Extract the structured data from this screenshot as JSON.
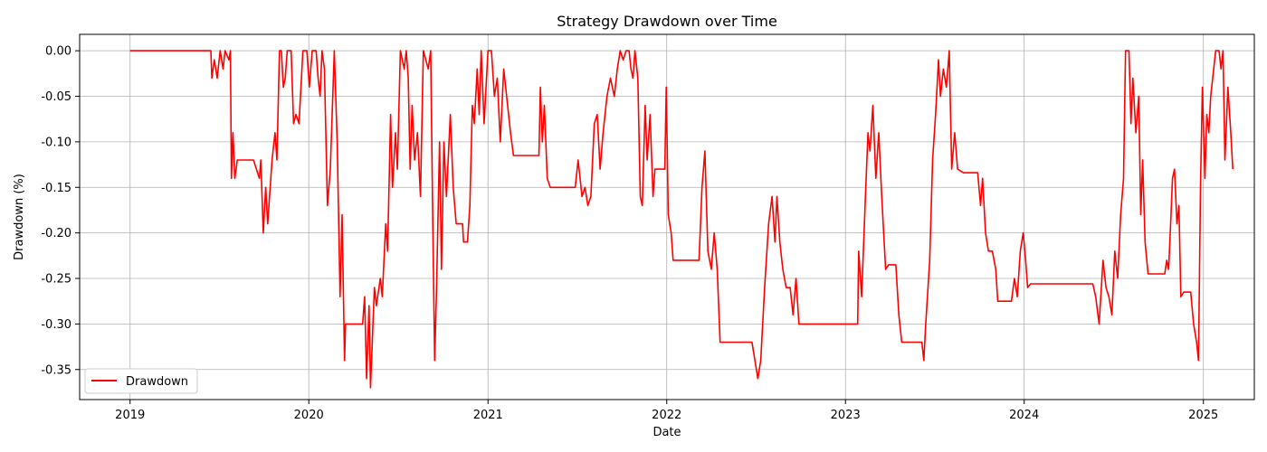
{
  "chart_data": {
    "type": "line",
    "title": "Strategy Drawdown over Time",
    "xlabel": "Date",
    "ylabel": "Drawdown (%)",
    "xlim": [
      "2018-09-20",
      "2025-04-15"
    ],
    "ylim": [
      -0.383,
      0.018
    ],
    "grid": true,
    "legend_position": "lower-left",
    "x_ticks": [
      "2019",
      "2020",
      "2021",
      "2022",
      "2023",
      "2024",
      "2025"
    ],
    "y_ticks": [
      "0.00",
      "-0.05",
      "-0.10",
      "-0.15",
      "-0.20",
      "-0.25",
      "-0.30",
      "-0.35"
    ],
    "x_tick_values": [
      "2019-01-01",
      "2020-01-01",
      "2021-01-01",
      "2022-01-01",
      "2023-01-01",
      "2024-01-01",
      "2025-01-01"
    ],
    "y_tick_values": [
      0,
      -0.05,
      -0.1,
      -0.15,
      -0.2,
      -0.25,
      -0.3,
      -0.35
    ],
    "series": [
      {
        "name": "Drawdown",
        "color": "#ff0000",
        "points": [
          [
            "2019-01-01",
            0
          ],
          [
            "2019-06-15",
            0
          ],
          [
            "2019-06-17",
            -0.03
          ],
          [
            "2019-06-22",
            -0.01
          ],
          [
            "2019-06-28",
            -0.03
          ],
          [
            "2019-07-04",
            0
          ],
          [
            "2019-07-10",
            -0.02
          ],
          [
            "2019-07-14",
            0
          ],
          [
            "2019-07-22",
            -0.01
          ],
          [
            "2019-07-25",
            0
          ],
          [
            "2019-07-27",
            -0.14
          ],
          [
            "2019-07-30",
            -0.09
          ],
          [
            "2019-08-03",
            -0.14
          ],
          [
            "2019-08-08",
            -0.12
          ],
          [
            "2019-08-20",
            -0.12
          ],
          [
            "2019-09-10",
            -0.12
          ],
          [
            "2019-09-22",
            -0.14
          ],
          [
            "2019-09-25",
            -0.12
          ],
          [
            "2019-09-30",
            -0.2
          ],
          [
            "2019-10-05",
            -0.15
          ],
          [
            "2019-10-09",
            -0.19
          ],
          [
            "2019-10-18",
            -0.12
          ],
          [
            "2019-10-24",
            -0.09
          ],
          [
            "2019-10-28",
            -0.12
          ],
          [
            "2019-11-02",
            0
          ],
          [
            "2019-11-06",
            0
          ],
          [
            "2019-11-10",
            -0.04
          ],
          [
            "2019-11-14",
            -0.03
          ],
          [
            "2019-11-18",
            0
          ],
          [
            "2019-11-26",
            0
          ],
          [
            "2019-12-01",
            -0.08
          ],
          [
            "2019-12-06",
            -0.07
          ],
          [
            "2019-12-12",
            -0.08
          ],
          [
            "2019-12-20",
            0
          ],
          [
            "2019-12-28",
            0
          ],
          [
            "2020-01-02",
            -0.04
          ],
          [
            "2020-01-08",
            0
          ],
          [
            "2020-01-16",
            0
          ],
          [
            "2020-01-20",
            -0.03
          ],
          [
            "2020-01-24",
            -0.05
          ],
          [
            "2020-01-28",
            0
          ],
          [
            "2020-02-02",
            -0.02
          ],
          [
            "2020-02-08",
            -0.17
          ],
          [
            "2020-02-14",
            -0.13
          ],
          [
            "2020-02-22",
            0
          ],
          [
            "2020-02-28",
            -0.1
          ],
          [
            "2020-03-05",
            -0.27
          ],
          [
            "2020-03-09",
            -0.18
          ],
          [
            "2020-03-14",
            -0.34
          ],
          [
            "2020-03-16",
            -0.3
          ],
          [
            "2020-03-30",
            -0.3
          ],
          [
            "2020-04-20",
            -0.3
          ],
          [
            "2020-04-24",
            -0.27
          ],
          [
            "2020-04-28",
            -0.36
          ],
          [
            "2020-05-03",
            -0.28
          ],
          [
            "2020-05-06",
            -0.37
          ],
          [
            "2020-05-14",
            -0.26
          ],
          [
            "2020-05-18",
            -0.28
          ],
          [
            "2020-05-26",
            -0.25
          ],
          [
            "2020-05-30",
            -0.27
          ],
          [
            "2020-06-06",
            -0.19
          ],
          [
            "2020-06-10",
            -0.22
          ],
          [
            "2020-06-16",
            -0.07
          ],
          [
            "2020-06-20",
            -0.15
          ],
          [
            "2020-06-26",
            -0.09
          ],
          [
            "2020-06-30",
            -0.13
          ],
          [
            "2020-07-06",
            0
          ],
          [
            "2020-07-14",
            -0.02
          ],
          [
            "2020-07-18",
            0
          ],
          [
            "2020-07-22",
            -0.03
          ],
          [
            "2020-07-26",
            -0.13
          ],
          [
            "2020-07-30",
            -0.06
          ],
          [
            "2020-08-04",
            -0.12
          ],
          [
            "2020-08-10",
            -0.09
          ],
          [
            "2020-08-16",
            -0.16
          ],
          [
            "2020-08-22",
            0
          ],
          [
            "2020-09-01",
            -0.02
          ],
          [
            "2020-09-06",
            0
          ],
          [
            "2020-09-10",
            -0.18
          ],
          [
            "2020-09-14",
            -0.34
          ],
          [
            "2020-09-18",
            -0.26
          ],
          [
            "2020-09-24",
            -0.1
          ],
          [
            "2020-09-28",
            -0.24
          ],
          [
            "2020-10-03",
            -0.1
          ],
          [
            "2020-10-08",
            -0.16
          ],
          [
            "2020-10-16",
            -0.07
          ],
          [
            "2020-10-22",
            -0.15
          ],
          [
            "2020-10-28",
            -0.19
          ],
          [
            "2020-11-10",
            -0.19
          ],
          [
            "2020-11-12",
            -0.21
          ],
          [
            "2020-11-20",
            -0.21
          ],
          [
            "2020-11-25",
            -0.17
          ],
          [
            "2020-11-30",
            -0.06
          ],
          [
            "2020-12-04",
            -0.08
          ],
          [
            "2020-12-10",
            -0.02
          ],
          [
            "2020-12-14",
            -0.07
          ],
          [
            "2020-12-18",
            0
          ],
          [
            "2020-12-24",
            -0.08
          ],
          [
            "2021-01-01",
            0
          ],
          [
            "2021-01-08",
            0
          ],
          [
            "2021-01-14",
            -0.05
          ],
          [
            "2021-01-20",
            -0.03
          ],
          [
            "2021-01-26",
            -0.1
          ],
          [
            "2021-02-02",
            -0.02
          ],
          [
            "2021-02-10",
            -0.06
          ],
          [
            "2021-02-16",
            -0.09
          ],
          [
            "2021-02-22",
            -0.115
          ],
          [
            "2021-04-15",
            -0.115
          ],
          [
            "2021-04-18",
            -0.04
          ],
          [
            "2021-04-22",
            -0.1
          ],
          [
            "2021-04-26",
            -0.06
          ],
          [
            "2021-05-02",
            -0.14
          ],
          [
            "2021-05-08",
            -0.15
          ],
          [
            "2021-06-01",
            -0.15
          ],
          [
            "2021-06-28",
            -0.15
          ],
          [
            "2021-07-04",
            -0.12
          ],
          [
            "2021-07-12",
            -0.16
          ],
          [
            "2021-07-18",
            -0.15
          ],
          [
            "2021-07-24",
            -0.17
          ],
          [
            "2021-07-30",
            -0.16
          ],
          [
            "2021-08-06",
            -0.08
          ],
          [
            "2021-08-12",
            -0.07
          ],
          [
            "2021-08-18",
            -0.13
          ],
          [
            "2021-08-24",
            -0.09
          ],
          [
            "2021-09-01",
            -0.05
          ],
          [
            "2021-09-08",
            -0.03
          ],
          [
            "2021-09-16",
            -0.05
          ],
          [
            "2021-09-22",
            -0.02
          ],
          [
            "2021-09-28",
            0
          ],
          [
            "2021-10-04",
            -0.01
          ],
          [
            "2021-10-10",
            0
          ],
          [
            "2021-10-16",
            0
          ],
          [
            "2021-10-20",
            -0.02
          ],
          [
            "2021-10-24",
            -0.03
          ],
          [
            "2021-10-28",
            0
          ],
          [
            "2021-11-03",
            -0.03
          ],
          [
            "2021-11-08",
            -0.16
          ],
          [
            "2021-11-12",
            -0.17
          ],
          [
            "2021-11-18",
            -0.06
          ],
          [
            "2021-11-22",
            -0.12
          ],
          [
            "2021-11-28",
            -0.07
          ],
          [
            "2021-12-04",
            -0.16
          ],
          [
            "2021-12-08",
            -0.13
          ],
          [
            "2021-12-28",
            -0.13
          ],
          [
            "2021-12-31",
            -0.04
          ],
          [
            "2022-01-04",
            -0.18
          ],
          [
            "2022-01-10",
            -0.2
          ],
          [
            "2022-01-14",
            -0.23
          ],
          [
            "2022-03-01",
            -0.23
          ],
          [
            "2022-03-08",
            -0.23
          ],
          [
            "2022-03-14",
            -0.15
          ],
          [
            "2022-03-20",
            -0.11
          ],
          [
            "2022-03-26",
            -0.22
          ],
          [
            "2022-04-02",
            -0.24
          ],
          [
            "2022-04-08",
            -0.2
          ],
          [
            "2022-04-14",
            -0.24
          ],
          [
            "2022-04-20",
            -0.32
          ],
          [
            "2022-05-20",
            -0.32
          ],
          [
            "2022-06-24",
            -0.32
          ],
          [
            "2022-07-06",
            -0.36
          ],
          [
            "2022-07-12",
            -0.34
          ],
          [
            "2022-07-20",
            -0.26
          ],
          [
            "2022-07-28",
            -0.19
          ],
          [
            "2022-08-04",
            -0.16
          ],
          [
            "2022-08-10",
            -0.21
          ],
          [
            "2022-08-14",
            -0.16
          ],
          [
            "2022-08-20",
            -0.21
          ],
          [
            "2022-08-26",
            -0.24
          ],
          [
            "2022-09-02",
            -0.26
          ],
          [
            "2022-09-10",
            -0.26
          ],
          [
            "2022-09-16",
            -0.29
          ],
          [
            "2022-09-22",
            -0.25
          ],
          [
            "2022-09-28",
            -0.3
          ],
          [
            "2022-12-31",
            -0.3
          ],
          [
            "2023-01-26",
            -0.3
          ],
          [
            "2023-01-28",
            -0.22
          ],
          [
            "2023-02-03",
            -0.27
          ],
          [
            "2023-02-10",
            -0.17
          ],
          [
            "2023-02-16",
            -0.09
          ],
          [
            "2023-02-20",
            -0.11
          ],
          [
            "2023-02-26",
            -0.06
          ],
          [
            "2023-03-04",
            -0.14
          ],
          [
            "2023-03-10",
            -0.09
          ],
          [
            "2023-03-16",
            -0.16
          ],
          [
            "2023-03-24",
            -0.24
          ],
          [
            "2023-03-30",
            -0.235
          ],
          [
            "2023-04-14",
            -0.235
          ],
          [
            "2023-04-20",
            -0.29
          ],
          [
            "2023-04-26",
            -0.32
          ],
          [
            "2023-05-22",
            -0.32
          ],
          [
            "2023-06-06",
            -0.32
          ],
          [
            "2023-06-10",
            -0.34
          ],
          [
            "2023-06-14",
            -0.3
          ],
          [
            "2023-06-22",
            -0.23
          ],
          [
            "2023-06-28",
            -0.12
          ],
          [
            "2023-07-04",
            -0.07
          ],
          [
            "2023-07-10",
            -0.01
          ],
          [
            "2023-07-14",
            -0.05
          ],
          [
            "2023-07-20",
            -0.02
          ],
          [
            "2023-07-26",
            -0.04
          ],
          [
            "2023-08-01",
            0
          ],
          [
            "2023-08-06",
            -0.13
          ],
          [
            "2023-08-12",
            -0.09
          ],
          [
            "2023-08-18",
            -0.13
          ],
          [
            "2023-08-30",
            -0.134
          ],
          [
            "2023-09-28",
            -0.134
          ],
          [
            "2023-10-04",
            -0.17
          ],
          [
            "2023-10-08",
            -0.14
          ],
          [
            "2023-10-14",
            -0.2
          ],
          [
            "2023-10-20",
            -0.22
          ],
          [
            "2023-10-28",
            -0.22
          ],
          [
            "2023-11-04",
            -0.24
          ],
          [
            "2023-11-08",
            -0.275
          ],
          [
            "2023-12-06",
            -0.275
          ],
          [
            "2023-12-12",
            -0.25
          ],
          [
            "2023-12-18",
            -0.27
          ],
          [
            "2023-12-24",
            -0.22
          ],
          [
            "2023-12-30",
            -0.2
          ],
          [
            "2024-01-04",
            -0.23
          ],
          [
            "2024-01-08",
            -0.26
          ],
          [
            "2024-01-14",
            -0.256
          ],
          [
            "2024-05-20",
            -0.256
          ],
          [
            "2024-05-26",
            -0.27
          ],
          [
            "2024-06-02",
            -0.3
          ],
          [
            "2024-06-10",
            -0.23
          ],
          [
            "2024-06-16",
            -0.26
          ],
          [
            "2024-06-22",
            -0.27
          ],
          [
            "2024-06-28",
            -0.29
          ],
          [
            "2024-07-04",
            -0.22
          ],
          [
            "2024-07-10",
            -0.25
          ],
          [
            "2024-07-16",
            -0.18
          ],
          [
            "2024-07-22",
            -0.14
          ],
          [
            "2024-07-26",
            0
          ],
          [
            "2024-08-02",
            0
          ],
          [
            "2024-08-06",
            -0.08
          ],
          [
            "2024-08-10",
            -0.03
          ],
          [
            "2024-08-16",
            -0.09
          ],
          [
            "2024-08-22",
            -0.05
          ],
          [
            "2024-08-26",
            -0.18
          ],
          [
            "2024-08-30",
            -0.12
          ],
          [
            "2024-09-04",
            -0.21
          ],
          [
            "2024-09-10",
            -0.245
          ],
          [
            "2024-10-14",
            -0.245
          ],
          [
            "2024-10-18",
            -0.23
          ],
          [
            "2024-10-22",
            -0.24
          ],
          [
            "2024-10-26",
            -0.19
          ],
          [
            "2024-10-30",
            -0.14
          ],
          [
            "2024-11-03",
            -0.13
          ],
          [
            "2024-11-08",
            -0.19
          ],
          [
            "2024-11-12",
            -0.17
          ],
          [
            "2024-11-16",
            -0.27
          ],
          [
            "2024-11-22",
            -0.265
          ],
          [
            "2024-12-06",
            -0.265
          ],
          [
            "2024-12-12",
            -0.3
          ],
          [
            "2024-12-18",
            -0.32
          ],
          [
            "2024-12-22",
            -0.34
          ],
          [
            "2024-12-26",
            -0.15
          ],
          [
            "2024-12-30",
            -0.04
          ],
          [
            "2025-01-04",
            -0.14
          ],
          [
            "2025-01-08",
            -0.07
          ],
          [
            "2025-01-12",
            -0.09
          ],
          [
            "2025-01-16",
            -0.05
          ],
          [
            "2025-01-20",
            -0.03
          ],
          [
            "2025-01-26",
            0
          ],
          [
            "2025-02-02",
            0
          ],
          [
            "2025-02-06",
            -0.02
          ],
          [
            "2025-02-10",
            0
          ],
          [
            "2025-02-14",
            -0.12
          ],
          [
            "2025-02-20",
            -0.04
          ],
          [
            "2025-02-26",
            -0.09
          ],
          [
            "2025-03-02",
            -0.13
          ]
        ]
      }
    ]
  }
}
